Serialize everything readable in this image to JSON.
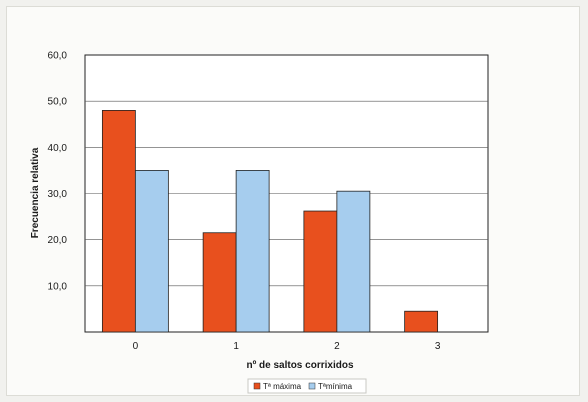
{
  "chart_data": {
    "type": "bar",
    "title": "",
    "xlabel": "nº de saltos corrixidos",
    "ylabel": "Frecuencia relativa",
    "categories": [
      "0",
      "1",
      "2",
      "3"
    ],
    "series": [
      {
        "name": "Tª máxima",
        "values": [
          48.0,
          21.5,
          26.2,
          4.5
        ],
        "color": "#e8501e"
      },
      {
        "name": "Tªmínima",
        "values": [
          35.0,
          35.0,
          30.5,
          0
        ],
        "color": "#a6cdee"
      }
    ],
    "ylim": [
      0,
      60
    ],
    "yticks": [
      "10,0",
      "20,0",
      "30,0",
      "40,0",
      "50,0",
      "60,0"
    ],
    "ytick_values": [
      10,
      20,
      30,
      40,
      50,
      60
    ],
    "grid": true,
    "legend_position": "bottom"
  }
}
